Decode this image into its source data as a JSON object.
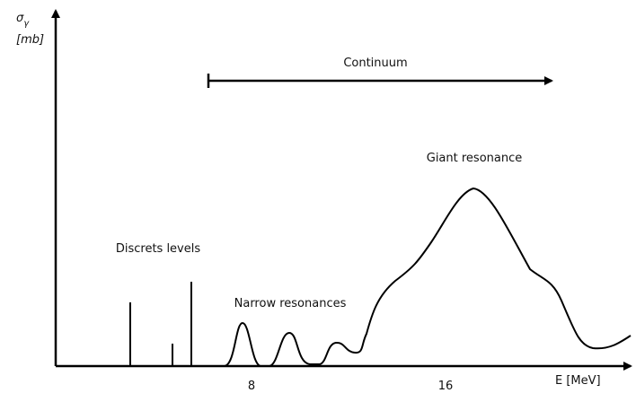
{
  "axes": {
    "y_symbol": "σ",
    "y_subscript": "γ",
    "y_unit": "[mb]",
    "x_label": "E [MeV]",
    "x_ticks": [
      "8",
      "16"
    ]
  },
  "annotations": {
    "continuum": "Continuum",
    "giant_resonance": "Giant resonance",
    "discrete_levels": "Discrets levels",
    "narrow_resonances": "Narrow resonances"
  }
}
